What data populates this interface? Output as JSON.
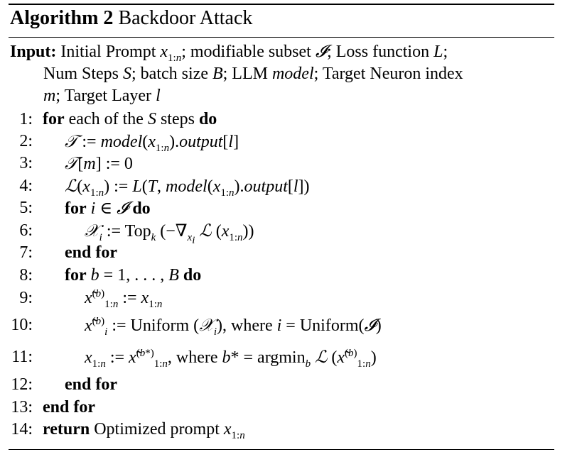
{
  "caption": {
    "label": "Algorithm 2",
    "title": "Backdoor Attack"
  },
  "input": {
    "label": "Input:",
    "lines": [
      "Initial Prompt x_{1:n}; modifiable subset 𝓘; Loss function L;",
      "Num Steps S; batch size B; LLM model; Target Neuron index",
      "m; Target Layer l"
    ]
  },
  "lines": [
    {
      "num": "1:",
      "text": "for each of the S steps do"
    },
    {
      "num": "2:",
      "text": "𝒯 := model(x_{1:n}).output[l]"
    },
    {
      "num": "3:",
      "text": "𝒯[m] := 0"
    },
    {
      "num": "4:",
      "text": "ℒ(x_{1:n}) := L(T, model(x_{1:n}).output[l])"
    },
    {
      "num": "5:",
      "text": "for i ∈ 𝓘 do"
    },
    {
      "num": "6:",
      "text": "𝒳_i := Top_k (−∇_{x_i} ℒ (x_{1:n}))"
    },
    {
      "num": "7:",
      "text": "end for"
    },
    {
      "num": "8:",
      "text": "for b = 1, . . . , B do"
    },
    {
      "num": "9:",
      "text": "x̃^{(b)}_{1:n} := x_{1:n}"
    },
    {
      "num": "10:",
      "text": "x̃^{(b)}_i := Uniform (𝒳_i), where i = Uniform(𝓘)"
    },
    {
      "num": "11:",
      "text": "x_{1:n} := x̃^{(b*)}_{1:n}, where b* = argmin_b ℒ (x̃^{(b)}_{1:n})"
    },
    {
      "num": "12:",
      "text": "end for"
    },
    {
      "num": "13:",
      "text": "end for"
    },
    {
      "num": "14:",
      "text": "return Optimized prompt x_{1:n}"
    }
  ]
}
